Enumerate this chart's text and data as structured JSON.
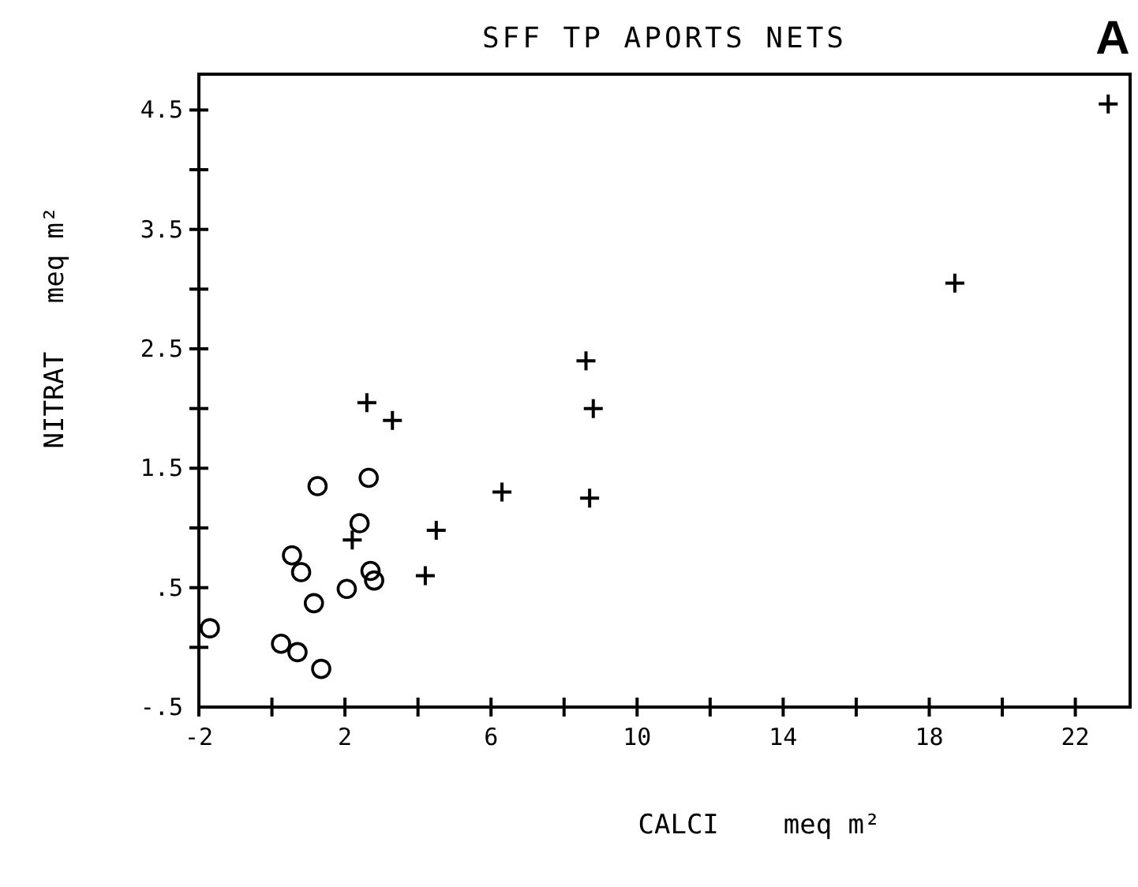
{
  "chart_data": {
    "type": "scatter",
    "title": "SFF TP  APORTS NETS",
    "xlabel": "CALCI    meq m²",
    "ylabel": "NITRAT   meq m²",
    "annotations": [
      "A"
    ],
    "xlim": [
      -2,
      23.5
    ],
    "xticks": [
      -2,
      {
        "value": 0,
        "label": null
      },
      2,
      {
        "value": 4,
        "label": null
      },
      6,
      {
        "value": 8,
        "label": null
      },
      10,
      {
        "value": 12,
        "label": null
      },
      14,
      {
        "value": 16,
        "label": null
      },
      18,
      {
        "value": 20,
        "label": null
      },
      22
    ],
    "ylim": [
      -0.5,
      4.8
    ],
    "yticks": [
      {
        "value": -0.5,
        "label": "-.5"
      },
      {
        "value": 0,
        "label": null
      },
      {
        "value": 0.5,
        "label": ".5"
      },
      {
        "value": 1,
        "label": null
      },
      1.5,
      {
        "value": 2,
        "label": null
      },
      2.5,
      {
        "value": 3,
        "label": null
      },
      3.5,
      {
        "value": 4,
        "label": null
      },
      4.5
    ],
    "grid": false,
    "series": [
      {
        "color": "#000000",
        "marker": "cross",
        "x": [
          22.9,
          18.7,
          8.6,
          8.8,
          2.6,
          3.3,
          6.3,
          8.7,
          4.5,
          4.2,
          2.2
        ],
        "values": [
          4.55,
          3.05,
          2.4,
          2.0,
          2.05,
          1.9,
          1.3,
          1.25,
          0.98,
          0.6,
          0.9
        ]
      },
      {
        "color": "#000000",
        "marker": "circle",
        "x": [
          1.25,
          2.65,
          2.4,
          0.55,
          0.8,
          1.15,
          2.05,
          2.7,
          2.8,
          -1.7,
          0.25,
          0.7,
          1.35
        ],
        "values": [
          1.35,
          1.42,
          1.04,
          0.77,
          0.63,
          0.37,
          0.49,
          0.64,
          0.56,
          0.16,
          0.03,
          -0.04,
          -0.18
        ]
      }
    ]
  }
}
